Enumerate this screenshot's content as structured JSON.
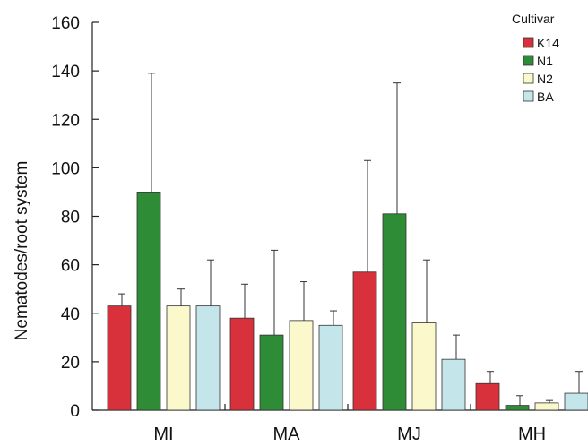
{
  "chart_data": {
    "type": "bar",
    "ylabel": "Nematodes/root system",
    "xlabel": "",
    "ylim": [
      0,
      160
    ],
    "yticks": [
      0,
      20,
      40,
      60,
      80,
      100,
      120,
      140,
      160
    ],
    "categories": [
      "MI",
      "MA",
      "MJ",
      "MH"
    ],
    "legend": {
      "title": "Cultivar",
      "position": "top-right"
    },
    "grid": false,
    "series": [
      {
        "name": "K14",
        "color": "#d9313b",
        "values": [
          43,
          38,
          57,
          11
        ],
        "errors": [
          5,
          14,
          46,
          5
        ]
      },
      {
        "name": "N1",
        "color": "#2e8b36",
        "values": [
          90,
          31,
          81,
          2
        ],
        "errors": [
          49,
          35,
          54,
          4
        ]
      },
      {
        "name": "N2",
        "color": "#fbf8cc",
        "values": [
          43,
          37,
          36,
          3
        ],
        "errors": [
          7,
          16,
          26,
          1
        ]
      },
      {
        "name": "BA",
        "color": "#c4e6ea",
        "values": [
          43,
          35,
          21,
          7
        ],
        "errors": [
          19,
          6,
          10,
          9
        ]
      }
    ]
  }
}
